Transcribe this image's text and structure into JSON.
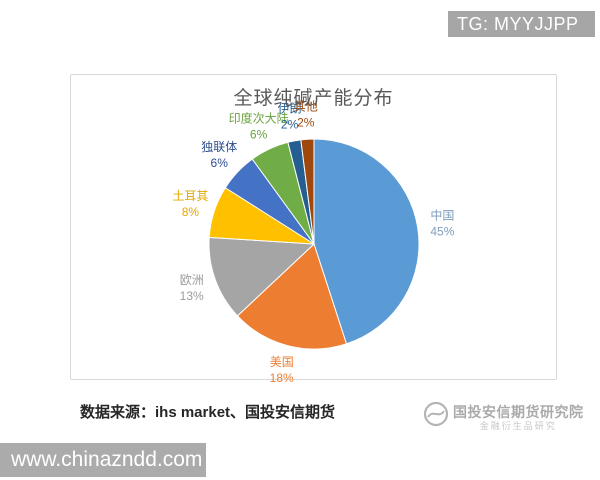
{
  "badges": {
    "telegram": "TG: MYYJJPP",
    "website": "www.chinazndd.com"
  },
  "chart_data": {
    "type": "pie",
    "title": "全球纯碱产能分布",
    "value_suffix": "%",
    "labels_position": "outside",
    "legend": "none",
    "direction": "clockwise",
    "start_angle_deg": 0,
    "slices": [
      {
        "label": "中国",
        "value": 45,
        "color": "#5B9BD5",
        "label_color": "#7F9CBA"
      },
      {
        "label": "美国",
        "value": 18,
        "color": "#ED7D31",
        "label_color": "#ED7D31"
      },
      {
        "label": "欧洲",
        "value": 13,
        "color": "#A5A5A5",
        "label_color": "#9B9B9B"
      },
      {
        "label": "土耳其",
        "value": 8,
        "color": "#FFC000",
        "label_color": "#E3A900"
      },
      {
        "label": "独联体",
        "value": 6,
        "color": "#4472C4",
        "label_color": "#2C4D8F"
      },
      {
        "label": "印度次大陆",
        "value": 6,
        "color": "#70AD47",
        "label_color": "#6AA43F"
      },
      {
        "label": "伊朗",
        "value": 2,
        "color": "#255E91",
        "label_color": "#255E91"
      },
      {
        "label": "其他",
        "value": 2,
        "color": "#9E480E",
        "label_color": "#9E480E"
      }
    ]
  },
  "footer": {
    "source_note": "数据来源：ihs market、国投安信期货",
    "watermark_line1": "国投安信期货研究院",
    "watermark_line2": "金融衍生品研究"
  }
}
